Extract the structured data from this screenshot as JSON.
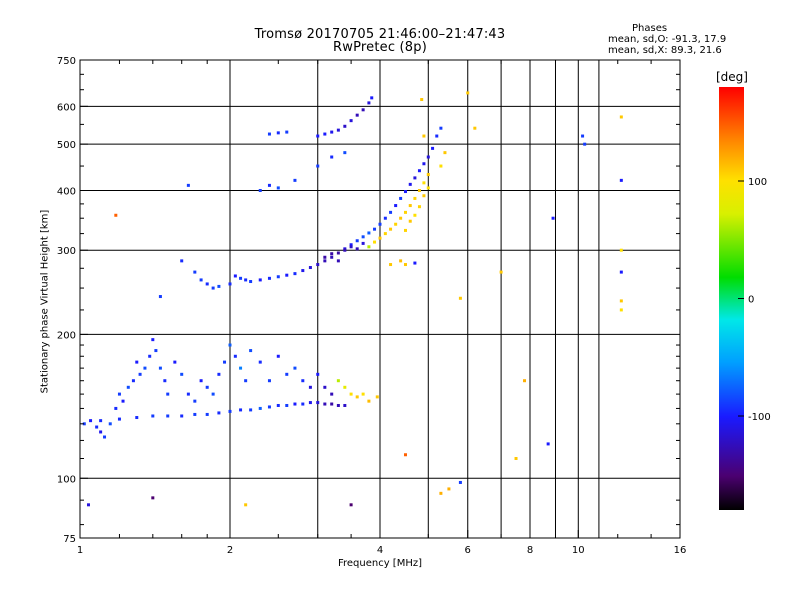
{
  "chart_data": {
    "type": "scatter",
    "title": "Tromsø 20170705 21:46:00–21:47:43",
    "subtitle": "RwPretec (8p)",
    "xlabel": "Frequency [MHz]",
    "ylabel": "Stationary phase Virtual Height [km]",
    "x_scale": "log",
    "y_scale": "log",
    "xlim": [
      1,
      16
    ],
    "ylim": [
      75,
      750
    ],
    "x_ticks": [
      1,
      2,
      4,
      6,
      8,
      10,
      16
    ],
    "x_tick_labels": [
      "1",
      "2",
      "4",
      "6",
      "8",
      "10",
      "16"
    ],
    "y_ticks": [
      75,
      100,
      200,
      300,
      400,
      500,
      600,
      750
    ],
    "y_tick_labels": [
      "75",
      "100",
      "200",
      "300",
      "400",
      "500",
      "600",
      "750"
    ],
    "grid": true,
    "legend": {
      "title": "Phases",
      "lines": [
        "mean, sd,O: -91.3, 17.9",
        "mean, sd,X:  89.3, 21.6"
      ],
      "placement": "top-right"
    },
    "colorbar": {
      "label": "[deg]",
      "range": [
        -180,
        180
      ],
      "ticks": [
        100,
        0,
        -100
      ],
      "tick_labels": [
        "100",
        "0",
        "-100"
      ],
      "colormap": "rainbow (black-purple-blue-cyan-green-yellow-orange-red)"
    },
    "series": [
      {
        "points": [
          [
            1.02,
            130,
            -100
          ],
          [
            1.05,
            132,
            -110
          ],
          [
            1.08,
            128,
            -105
          ],
          [
            1.1,
            125,
            -115
          ],
          [
            1.12,
            122,
            -100
          ],
          [
            1.15,
            130,
            -95
          ],
          [
            1.18,
            140,
            -105
          ],
          [
            1.2,
            150,
            -100
          ],
          [
            1.22,
            145,
            -110
          ],
          [
            1.25,
            155,
            -95
          ],
          [
            1.28,
            160,
            -105
          ],
          [
            1.3,
            175,
            -110
          ],
          [
            1.32,
            165,
            -100
          ],
          [
            1.35,
            170,
            -95
          ],
          [
            1.38,
            180,
            -105
          ],
          [
            1.4,
            195,
            -110
          ],
          [
            1.42,
            185,
            -100
          ],
          [
            1.45,
            170,
            -95
          ],
          [
            1.48,
            160,
            -105
          ],
          [
            1.5,
            150,
            -100
          ],
          [
            1.55,
            175,
            -110
          ],
          [
            1.6,
            165,
            -95
          ],
          [
            1.65,
            150,
            -105
          ],
          [
            1.7,
            145,
            -100
          ],
          [
            1.75,
            160,
            -110
          ],
          [
            1.8,
            155,
            -100
          ],
          [
            1.85,
            150,
            -95
          ],
          [
            1.9,
            165,
            -105
          ],
          [
            1.95,
            175,
            -100
          ],
          [
            2.0,
            190,
            -90
          ],
          [
            2.05,
            180,
            -105
          ],
          [
            2.1,
            170,
            -80
          ],
          [
            2.15,
            160,
            -100
          ],
          [
            2.2,
            185,
            -95
          ],
          [
            2.3,
            175,
            -105
          ],
          [
            2.4,
            160,
            -100
          ],
          [
            2.5,
            180,
            -110
          ],
          [
            2.6,
            165,
            -100
          ],
          [
            2.7,
            170,
            -95
          ],
          [
            2.8,
            160,
            -105
          ],
          [
            2.9,
            155,
            -120
          ],
          [
            3.0,
            165,
            -110
          ],
          [
            3.1,
            155,
            -125
          ],
          [
            3.2,
            150,
            -130
          ],
          [
            3.3,
            160,
            60
          ],
          [
            3.4,
            155,
            80
          ],
          [
            3.5,
            150,
            100
          ],
          [
            3.6,
            148,
            110
          ],
          [
            3.7,
            150,
            100
          ],
          [
            3.8,
            145,
            115
          ],
          [
            3.95,
            148,
            110
          ],
          [
            1.1,
            132,
            -105
          ],
          [
            1.2,
            133,
            -105
          ],
          [
            1.3,
            134,
            -105
          ],
          [
            1.4,
            135,
            -100
          ],
          [
            1.5,
            135,
            -100
          ],
          [
            1.6,
            135,
            -105
          ],
          [
            1.7,
            136,
            -100
          ],
          [
            1.8,
            136,
            -100
          ],
          [
            1.9,
            137,
            -105
          ],
          [
            2.0,
            138,
            -100
          ],
          [
            2.1,
            139,
            -105
          ],
          [
            2.2,
            139,
            -100
          ],
          [
            2.3,
            140,
            -90
          ],
          [
            2.4,
            141,
            -100
          ],
          [
            2.5,
            142,
            -105
          ],
          [
            2.6,
            142,
            -100
          ],
          [
            2.7,
            143,
            -110
          ],
          [
            2.8,
            143,
            -105
          ],
          [
            2.9,
            144,
            -115
          ],
          [
            3.0,
            144,
            -120
          ],
          [
            3.1,
            143,
            -130
          ],
          [
            3.2,
            143,
            -135
          ],
          [
            3.3,
            142,
            -130
          ],
          [
            3.4,
            142,
            -125
          ],
          [
            1.45,
            240,
            -100
          ],
          [
            1.6,
            285,
            -105
          ],
          [
            1.7,
            270,
            -100
          ],
          [
            1.75,
            260,
            -100
          ],
          [
            1.8,
            255,
            -105
          ],
          [
            1.85,
            250,
            -100
          ],
          [
            1.9,
            252,
            -95
          ],
          [
            2.0,
            255,
            -105
          ],
          [
            2.05,
            265,
            -110
          ],
          [
            2.1,
            262,
            -100
          ],
          [
            2.15,
            260,
            -105
          ],
          [
            2.2,
            258,
            -100
          ],
          [
            2.3,
            260,
            -110
          ],
          [
            2.4,
            262,
            -105
          ],
          [
            2.5,
            264,
            -100
          ],
          [
            2.6,
            266,
            -110
          ],
          [
            2.7,
            268,
            -105
          ],
          [
            2.8,
            272,
            -115
          ],
          [
            2.9,
            276,
            -120
          ],
          [
            3.0,
            280,
            -125
          ],
          [
            3.1,
            285,
            -130
          ],
          [
            3.2,
            290,
            -130
          ],
          [
            3.3,
            296,
            -135
          ],
          [
            3.4,
            302,
            -120
          ],
          [
            3.5,
            308,
            -110
          ],
          [
            3.6,
            314,
            -100
          ],
          [
            3.7,
            320,
            -95
          ],
          [
            3.8,
            326,
            -90
          ],
          [
            3.9,
            332,
            -100
          ],
          [
            4.0,
            340,
            -100
          ],
          [
            4.1,
            350,
            -105
          ],
          [
            4.2,
            360,
            -100
          ],
          [
            4.3,
            372,
            -110
          ],
          [
            4.4,
            385,
            -100
          ],
          [
            4.5,
            398,
            -110
          ],
          [
            4.6,
            412,
            -115
          ],
          [
            4.7,
            425,
            -120
          ],
          [
            4.8,
            440,
            -110
          ],
          [
            4.9,
            455,
            -115
          ],
          [
            5.0,
            470,
            -120
          ],
          [
            5.1,
            490,
            -110
          ],
          [
            5.2,
            520,
            -105
          ],
          [
            5.3,
            540,
            -100
          ],
          [
            3.1,
            290,
            -135
          ],
          [
            3.2,
            295,
            -135
          ],
          [
            3.3,
            285,
            -130
          ],
          [
            3.4,
            300,
            -130
          ],
          [
            3.5,
            305,
            -125
          ],
          [
            3.6,
            302,
            -130
          ],
          [
            3.7,
            310,
            -120
          ],
          [
            3.8,
            305,
            60
          ],
          [
            3.9,
            312,
            100
          ],
          [
            4.0,
            318,
            110
          ],
          [
            4.1,
            325,
            105
          ],
          [
            4.2,
            332,
            110
          ],
          [
            4.3,
            340,
            105
          ],
          [
            4.4,
            350,
            110
          ],
          [
            4.5,
            360,
            105
          ],
          [
            4.6,
            372,
            110
          ],
          [
            4.7,
            385,
            105
          ],
          [
            4.8,
            400,
            110
          ],
          [
            4.9,
            415,
            100
          ],
          [
            5.0,
            432,
            110
          ],
          [
            4.5,
            330,
            105
          ],
          [
            4.6,
            345,
            110
          ],
          [
            4.7,
            355,
            100
          ],
          [
            4.8,
            370,
            105
          ],
          [
            4.9,
            390,
            110
          ],
          [
            5.0,
            405,
            100
          ],
          [
            4.85,
            620,
            110
          ],
          [
            4.9,
            520,
            110
          ],
          [
            5.3,
            450,
            100
          ],
          [
            5.4,
            480,
            110
          ],
          [
            2.3,
            400,
            -100
          ],
          [
            2.4,
            410,
            -105
          ],
          [
            2.5,
            405,
            -95
          ],
          [
            2.7,
            420,
            -100
          ],
          [
            3.0,
            450,
            -100
          ],
          [
            3.2,
            470,
            -105
          ],
          [
            3.4,
            480,
            -95
          ],
          [
            3.0,
            520,
            -110
          ],
          [
            3.1,
            525,
            -110
          ],
          [
            3.2,
            530,
            -115
          ],
          [
            3.3,
            535,
            -120
          ],
          [
            3.4,
            545,
            -125
          ],
          [
            3.5,
            560,
            -120
          ],
          [
            3.6,
            575,
            -130
          ],
          [
            3.7,
            590,
            -130
          ],
          [
            3.8,
            610,
            -120
          ],
          [
            3.85,
            625,
            -110
          ],
          [
            2.4,
            525,
            -100
          ],
          [
            2.5,
            528,
            -105
          ],
          [
            2.6,
            530,
            -100
          ],
          [
            4.2,
            280,
            110
          ],
          [
            4.4,
            285,
            115
          ],
          [
            4.5,
            280,
            110
          ],
          [
            4.7,
            282,
            -110
          ],
          [
            6.0,
            640,
            110
          ],
          [
            6.2,
            540,
            110
          ],
          [
            7.0,
            270,
            110
          ],
          [
            7.8,
            160,
            120
          ],
          [
            8.9,
            350,
            -110
          ],
          [
            10.2,
            520,
            -100
          ],
          [
            10.3,
            500,
            -100
          ],
          [
            12.2,
            570,
            110
          ],
          [
            12.2,
            420,
            -110
          ],
          [
            12.2,
            300,
            100
          ],
          [
            12.2,
            270,
            -110
          ],
          [
            12.2,
            235,
            110
          ],
          [
            12.2,
            225,
            100
          ],
          [
            1.04,
            88,
            -120
          ],
          [
            1.4,
            91,
            -150
          ],
          [
            2.15,
            88,
            110
          ],
          [
            3.5,
            88,
            -150
          ],
          [
            5.3,
            93,
            120
          ],
          [
            5.5,
            95,
            120
          ],
          [
            5.8,
            98,
            -100
          ],
          [
            4.5,
            112,
            150
          ],
          [
            7.5,
            110,
            110
          ],
          [
            8.7,
            118,
            -110
          ],
          [
            1.18,
            355,
            150
          ],
          [
            1.65,
            410,
            -100
          ],
          [
            5.8,
            238,
            110
          ]
        ]
      }
    ]
  }
}
